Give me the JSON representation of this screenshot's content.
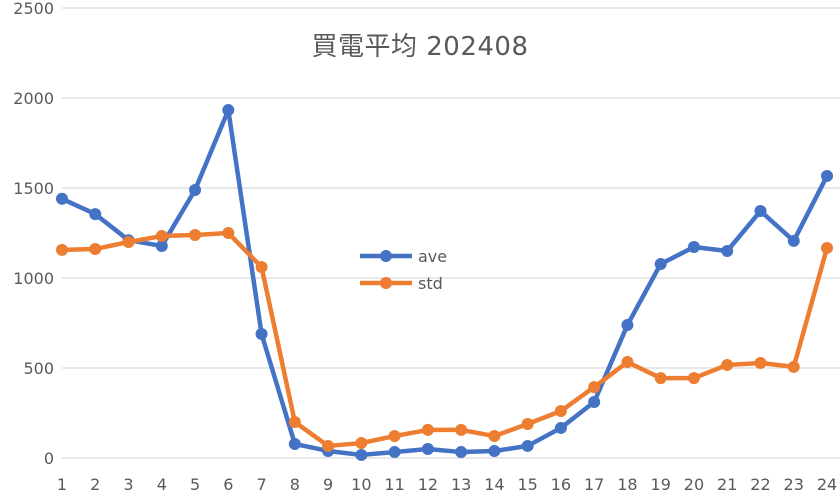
{
  "chart_data": {
    "type": "line",
    "title": "買電平均 202408",
    "xlabel": "",
    "ylabel": "",
    "x": [
      1,
      2,
      3,
      4,
      5,
      6,
      7,
      8,
      9,
      10,
      11,
      12,
      13,
      14,
      15,
      16,
      17,
      18,
      19,
      20,
      21,
      22,
      23,
      24
    ],
    "categories": [
      "1",
      "2",
      "3",
      "4",
      "5",
      "6",
      "7",
      "8",
      "9",
      "10",
      "11",
      "12",
      "13",
      "14",
      "15",
      "16",
      "17",
      "18",
      "19",
      "20",
      "21",
      "22",
      "23",
      "24"
    ],
    "ylim": [
      0,
      2500
    ],
    "yticks": [
      0,
      500,
      1000,
      1500,
      2000,
      2500
    ],
    "grid": true,
    "legend_position": "inside-center",
    "series": [
      {
        "name": "ave",
        "color": "#4472C4",
        "values": [
          1440,
          1355,
          1210,
          1178,
          1489,
          1933,
          689,
          78,
          39,
          17,
          33,
          50,
          33,
          39,
          67,
          167,
          311,
          739,
          1078,
          1172,
          1150,
          1372,
          1206,
          1567
        ]
      },
      {
        "name": "std",
        "color": "#ED7D31",
        "values": [
          1156,
          1161,
          1200,
          1233,
          1239,
          1250,
          1061,
          200,
          67,
          83,
          122,
          156,
          156,
          122,
          189,
          261,
          394,
          533,
          444,
          444,
          517,
          528,
          506,
          1167
        ]
      }
    ]
  },
  "title": "買電平均 202408",
  "legend": {
    "items": [
      {
        "label": "ave",
        "color": "#4472C4"
      },
      {
        "label": "std",
        "color": "#ED7D31"
      }
    ]
  },
  "colors": {
    "grid": "#D9D9D9",
    "text": "#595959",
    "background": "#FFFFFF"
  }
}
